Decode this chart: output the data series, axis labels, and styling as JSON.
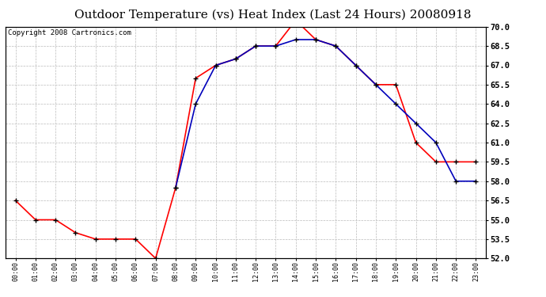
{
  "title": "Outdoor Temperature (vs) Heat Index (Last 24 Hours) 20080918",
  "copyright": "Copyright 2008 Cartronics.com",
  "hours": [
    "00:00",
    "01:00",
    "02:00",
    "03:00",
    "04:00",
    "05:00",
    "06:00",
    "07:00",
    "08:00",
    "09:00",
    "10:00",
    "11:00",
    "12:00",
    "13:00",
    "14:00",
    "15:00",
    "16:00",
    "17:00",
    "18:00",
    "19:00",
    "20:00",
    "21:00",
    "22:00",
    "23:00"
  ],
  "temp": [
    56.5,
    55.0,
    55.0,
    54.0,
    53.5,
    53.5,
    53.5,
    52.0,
    57.5,
    66.0,
    67.0,
    67.5,
    68.5,
    68.5,
    70.5,
    69.0,
    68.5,
    67.0,
    65.5,
    65.5,
    61.0,
    59.5,
    59.5,
    59.5
  ],
  "heat_index": [
    null,
    null,
    null,
    null,
    null,
    null,
    null,
    null,
    57.5,
    64.0,
    67.0,
    67.5,
    68.5,
    68.5,
    69.0,
    69.0,
    68.5,
    67.0,
    65.5,
    64.0,
    62.5,
    61.0,
    58.0,
    58.0
  ],
  "ylim_min": 52.0,
  "ylim_max": 70.0,
  "ytick_step": 1.5,
  "yticks": [
    52.0,
    53.5,
    55.0,
    56.5,
    58.0,
    59.5,
    61.0,
    62.5,
    64.0,
    65.5,
    67.0,
    68.5,
    70.0
  ],
  "temp_color": "#ff0000",
  "heat_color": "#0000bb",
  "bg_color": "#ffffff",
  "plot_bg": "#ffffff",
  "grid_color": "#bbbbbb",
  "title_fontsize": 11,
  "copyright_fontsize": 6.5
}
